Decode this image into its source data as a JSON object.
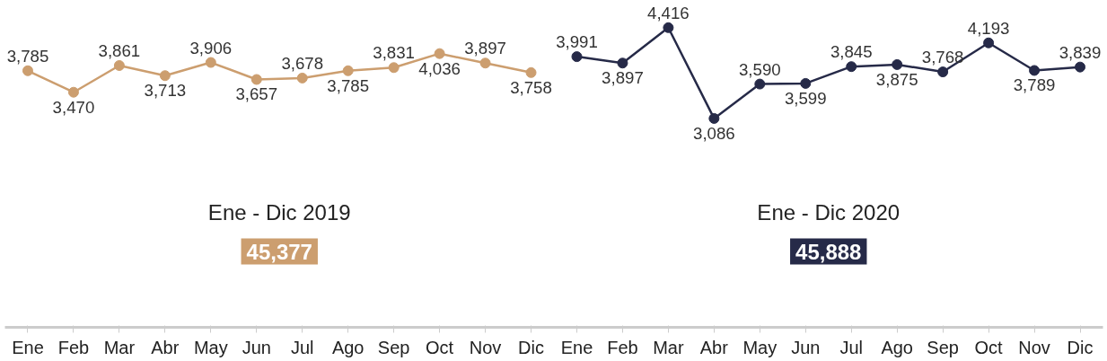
{
  "chart_data": {
    "type": "line",
    "categories": [
      "Ene",
      "Feb",
      "Mar",
      "Abr",
      "May",
      "Jun",
      "Jul",
      "Ago",
      "Sep",
      "Oct",
      "Nov",
      "Dic",
      "Ene",
      "Feb",
      "Mar",
      "Abr",
      "May",
      "Jun",
      "Jul",
      "Ago",
      "Sep",
      "Oct",
      "Nov",
      "Dic"
    ],
    "series": [
      {
        "color": "#cc9e6f",
        "values": [
          3785,
          3470,
          3861,
          3713,
          3906,
          3657,
          3678,
          3785,
          3831,
          4036,
          3897,
          3758,
          null,
          null,
          null,
          null,
          null,
          null,
          null,
          null,
          null,
          null,
          null,
          null
        ],
        "value_labels": [
          "3,785",
          "3,470",
          "3,861",
          "3,713",
          "3,906",
          "3,657",
          "3,678",
          "3,785",
          "3,831",
          "4,036",
          "3,897",
          "3,758",
          null,
          null,
          null,
          null,
          null,
          null,
          null,
          null,
          null,
          null,
          null,
          null
        ]
      },
      {
        "color": "#262a48",
        "values": [
          null,
          null,
          null,
          null,
          null,
          null,
          null,
          null,
          null,
          null,
          null,
          null,
          3991,
          3897,
          4416,
          3086,
          3590,
          3599,
          3845,
          3875,
          3768,
          4193,
          3789,
          3839
        ],
        "value_labels": [
          null,
          null,
          null,
          null,
          null,
          null,
          null,
          null,
          null,
          null,
          null,
          null,
          "3,991",
          "3,897",
          "4,416",
          "3,086",
          "3,590",
          "3,599",
          "3,845",
          "3,875",
          "3,768",
          "4,193",
          "3,789",
          "3,839"
        ]
      }
    ],
    "annotations": [
      "Ene - Dic 2019",
      "45,377",
      "Ene - Dic 2020",
      "45,888"
    ],
    "marker": "circle",
    "grid": false,
    "tick_labels": "x"
  }
}
